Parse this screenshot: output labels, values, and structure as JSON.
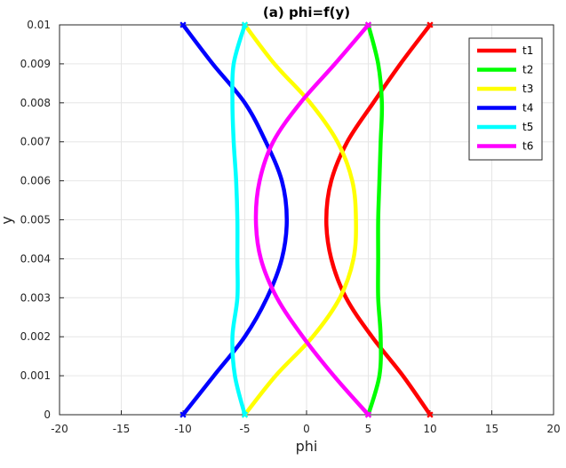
{
  "chart_data": {
    "type": "line",
    "title": "(a) phi=f(y)",
    "xlabel": "phi",
    "ylabel": "y",
    "xlim": [
      -20,
      20
    ],
    "ylim": [
      0,
      0.01
    ],
    "xticks": [
      "-20",
      "-15",
      "-10",
      "-5",
      "0",
      "5",
      "10",
      "15",
      "20"
    ],
    "yticks": [
      "0",
      "0.001",
      "0.002",
      "0.003",
      "0.004",
      "0.005",
      "0.006",
      "0.007",
      "0.008",
      "0.009",
      "0.01"
    ],
    "grid": true,
    "legend_position": "top-right",
    "series": [
      {
        "name": "t1",
        "color": "#ff0000",
        "points": [
          [
            10,
            0
          ],
          [
            7.8,
            0.001
          ],
          [
            5.3,
            0.002
          ],
          [
            3.2,
            0.003
          ],
          [
            2.0,
            0.004
          ],
          [
            1.6,
            0.005
          ],
          [
            2.0,
            0.006
          ],
          [
            3.3,
            0.007
          ],
          [
            5.4,
            0.008
          ],
          [
            7.6,
            0.009
          ],
          [
            10,
            0.01
          ]
        ]
      },
      {
        "name": "t2",
        "color": "#00ff00",
        "points": [
          [
            5,
            0
          ],
          [
            5.9,
            0.001
          ],
          [
            6.0,
            0.002
          ],
          [
            5.8,
            0.003
          ],
          [
            5.8,
            0.004
          ],
          [
            5.8,
            0.005
          ],
          [
            5.9,
            0.006
          ],
          [
            6.0,
            0.007
          ],
          [
            6.1,
            0.008
          ],
          [
            5.8,
            0.009
          ],
          [
            5,
            0.01
          ]
        ]
      },
      {
        "name": "t3",
        "color": "#ffff00",
        "points": [
          [
            -5,
            0
          ],
          [
            -2.5,
            0.001
          ],
          [
            0.5,
            0.002
          ],
          [
            2.7,
            0.003
          ],
          [
            3.8,
            0.004
          ],
          [
            4.0,
            0.005
          ],
          [
            3.7,
            0.006
          ],
          [
            2.5,
            0.007
          ],
          [
            0.3,
            0.008
          ],
          [
            -2.6,
            0.009
          ],
          [
            -5,
            0.01
          ]
        ]
      },
      {
        "name": "t4",
        "color": "#0000ff",
        "points": [
          [
            -10,
            0
          ],
          [
            -7.5,
            0.001
          ],
          [
            -5.0,
            0.002
          ],
          [
            -3.2,
            0.003
          ],
          [
            -2.0,
            0.004
          ],
          [
            -1.6,
            0.005
          ],
          [
            -2.0,
            0.006
          ],
          [
            -3.3,
            0.007
          ],
          [
            -5.0,
            0.008
          ],
          [
            -7.6,
            0.009
          ],
          [
            -10,
            0.01
          ]
        ]
      },
      {
        "name": "t5",
        "color": "#00ffff",
        "points": [
          [
            -5,
            0
          ],
          [
            -5.8,
            0.001
          ],
          [
            -6.0,
            0.002
          ],
          [
            -5.6,
            0.003
          ],
          [
            -5.6,
            0.004
          ],
          [
            -5.6,
            0.005
          ],
          [
            -5.7,
            0.006
          ],
          [
            -5.9,
            0.007
          ],
          [
            -6.0,
            0.008
          ],
          [
            -5.9,
            0.009
          ],
          [
            -5,
            0.01
          ]
        ]
      },
      {
        "name": "t6",
        "color": "#ff00ff",
        "points": [
          [
            5,
            0
          ],
          [
            2.2,
            0.001
          ],
          [
            -0.3,
            0.002
          ],
          [
            -2.4,
            0.003
          ],
          [
            -3.7,
            0.004
          ],
          [
            -4.1,
            0.005
          ],
          [
            -3.8,
            0.006
          ],
          [
            -2.7,
            0.007
          ],
          [
            -0.5,
            0.008
          ],
          [
            2.3,
            0.009
          ],
          [
            5,
            0.01
          ]
        ]
      }
    ]
  }
}
